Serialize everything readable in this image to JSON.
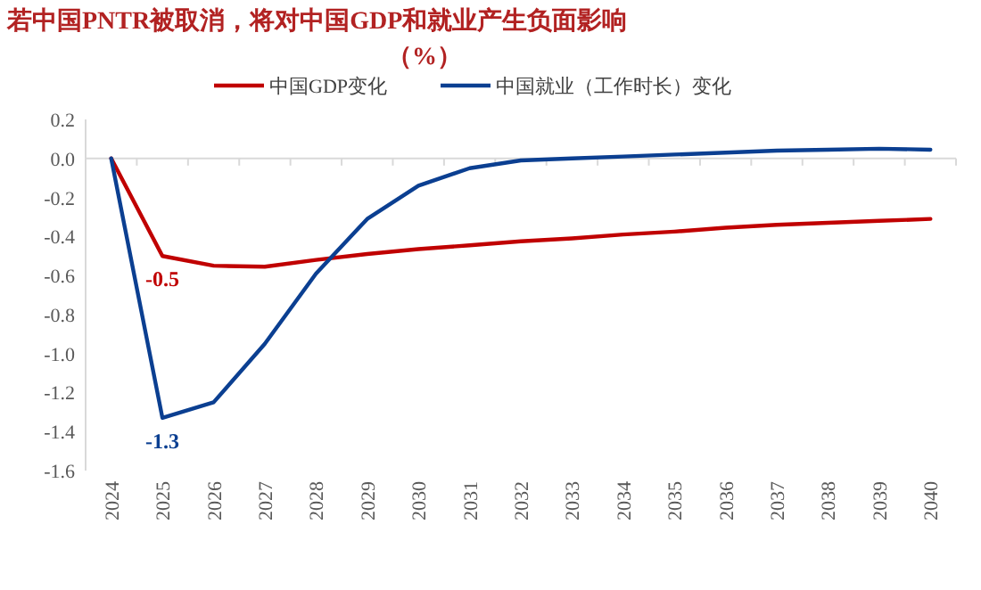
{
  "chart_data": {
    "type": "line",
    "title": "若中国PNTR被取消，将对中国GDP和就业产生负面影响",
    "subtitle": "（%）",
    "categories": [
      "2024",
      "2025",
      "2026",
      "2027",
      "2028",
      "2029",
      "2030",
      "2031",
      "2032",
      "2033",
      "2034",
      "2035",
      "2036",
      "2037",
      "2038",
      "2039",
      "2040"
    ],
    "series": [
      {
        "name": "中国GDP变化",
        "color": "#c00000",
        "values": [
          0,
          -0.5,
          -0.55,
          -0.555,
          -0.52,
          -0.49,
          -0.465,
          -0.445,
          -0.425,
          -0.41,
          -0.39,
          -0.375,
          -0.355,
          -0.34,
          -0.33,
          -0.32,
          -0.31
        ],
        "value_labels": [
          null,
          "-0.5",
          null,
          null,
          null,
          null,
          null,
          null,
          null,
          null,
          null,
          null,
          null,
          null,
          null,
          null,
          null
        ]
      },
      {
        "name": "中国就业（工作时长）变化",
        "color": "#0b3f91",
        "values": [
          0,
          -1.33,
          -1.25,
          -0.95,
          -0.59,
          -0.31,
          -0.14,
          -0.05,
          -0.01,
          0.0,
          0.01,
          0.02,
          0.03,
          0.04,
          0.045,
          0.05,
          0.045
        ],
        "value_labels": [
          null,
          "-1.3",
          null,
          null,
          null,
          null,
          null,
          null,
          null,
          null,
          null,
          null,
          null,
          null,
          null,
          null,
          null
        ]
      }
    ],
    "ylim": [
      -1.6,
      0.2
    ],
    "yticks": [
      {
        "value": 0.2,
        "label": "0.2"
      },
      {
        "value": 0,
        "label": "0.0"
      },
      {
        "value": -0.2,
        "label": "-0.2"
      },
      {
        "value": -0.4,
        "label": "-0.4"
      },
      {
        "value": -0.6,
        "label": "-0.6"
      },
      {
        "value": -0.8,
        "label": "-0.8"
      },
      {
        "value": -1.0,
        "label": "-1.0"
      },
      {
        "value": -1.2,
        "label": "-1.2"
      },
      {
        "value": -1.4,
        "label": "-1.4"
      },
      {
        "value": -1.6,
        "label": "-1.6"
      }
    ],
    "legend": "top",
    "marker": "none",
    "line_style": "solid"
  }
}
